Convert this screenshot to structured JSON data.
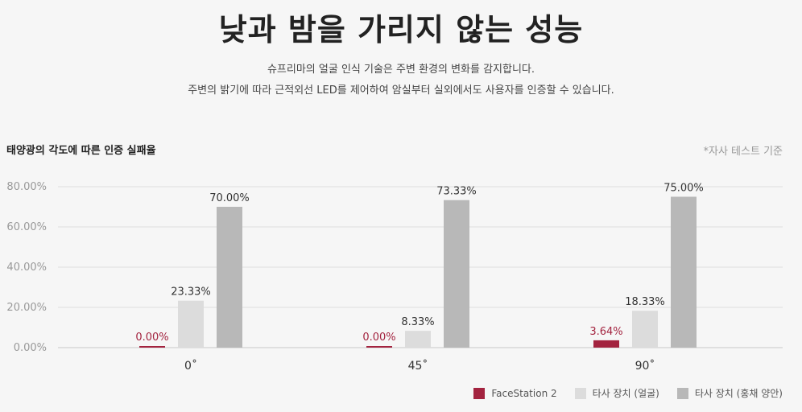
{
  "headline": "낮과 밤을 가리지 않는 성능",
  "description": [
    "슈프리마의 얼굴 인식 기술은 주변 환경의 변화를 감지합니다.",
    "주변의 밝기에 따라 근적외선 LED를 제어하여 암실부터 실외에서도 사용자를 인증할 수 있습니다."
  ],
  "chart_title": "태양광의 각도에 따른 인증 실패율",
  "note": "*자사 테스트 기준",
  "chart_data": {
    "type": "bar",
    "title": "태양광의 각도에 따른 인증 실패율",
    "categories": [
      "0˚",
      "45˚",
      "90˚"
    ],
    "series": [
      {
        "name": "FaceStation 2",
        "values": [
          0.0,
          0.0,
          3.64
        ],
        "labels": [
          "0.00%",
          "0.00%",
          "3.64%"
        ],
        "color": "#a3233f"
      },
      {
        "name": "타사 장치 (얼굴)",
        "values": [
          23.33,
          8.33,
          18.33
        ],
        "labels": [
          "23.33%",
          "8.33%",
          "18.33%"
        ],
        "color": "#dcdcdc"
      },
      {
        "name": "타사 장치 (홍채 양안)",
        "values": [
          70.0,
          73.33,
          75.0
        ],
        "labels": [
          "70.00%",
          "73.33%",
          "75.00%"
        ],
        "color": "#b8b8b8"
      }
    ],
    "yticks": [
      "0.00%",
      "20.00%",
      "40.00%",
      "60.00%",
      "80.00%"
    ],
    "ytick_values": [
      0,
      20,
      40,
      60,
      80
    ],
    "ylim": [
      0,
      80
    ],
    "grid": true,
    "legend_position": "bottom-right"
  }
}
